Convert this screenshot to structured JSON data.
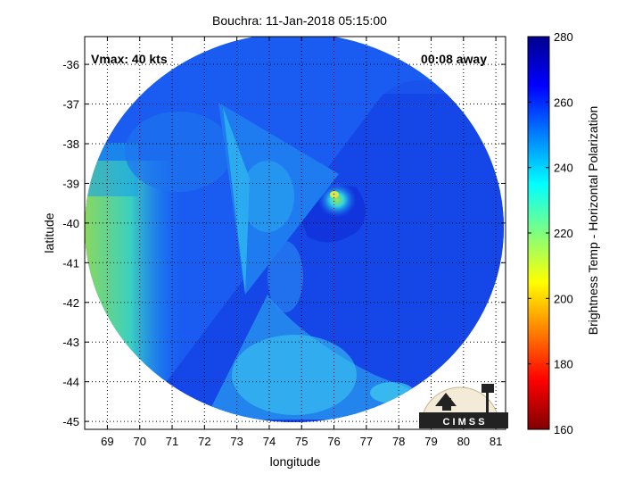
{
  "title": "Bouchra: 11-Jan-2018 05:15:00",
  "annotations": {
    "vmax": "Vmax: 40 kts",
    "time_away": "00:08 away"
  },
  "axes": {
    "xlabel": "longitude",
    "ylabel": "latitude",
    "xlim": [
      68.3,
      81.3
    ],
    "ylim": [
      -45.2,
      -35.3
    ],
    "xticks": [
      69,
      70,
      71,
      72,
      73,
      74,
      75,
      76,
      77,
      78,
      79,
      80,
      81
    ],
    "yticks": [
      -36,
      -37,
      -38,
      -39,
      -40,
      -41,
      -42,
      -43,
      -44,
      -45
    ],
    "grid": "dotted"
  },
  "colorbar": {
    "label": "Brightness Temp - Horizontal Polarization",
    "ticks": [
      280,
      260,
      240,
      220,
      200,
      180,
      160
    ],
    "range": [
      160,
      280
    ],
    "colormap": "jet"
  },
  "storm_center": {
    "lon": 75.8,
    "lat": -39.3
  },
  "logo": {
    "text": "C I M S S"
  }
}
